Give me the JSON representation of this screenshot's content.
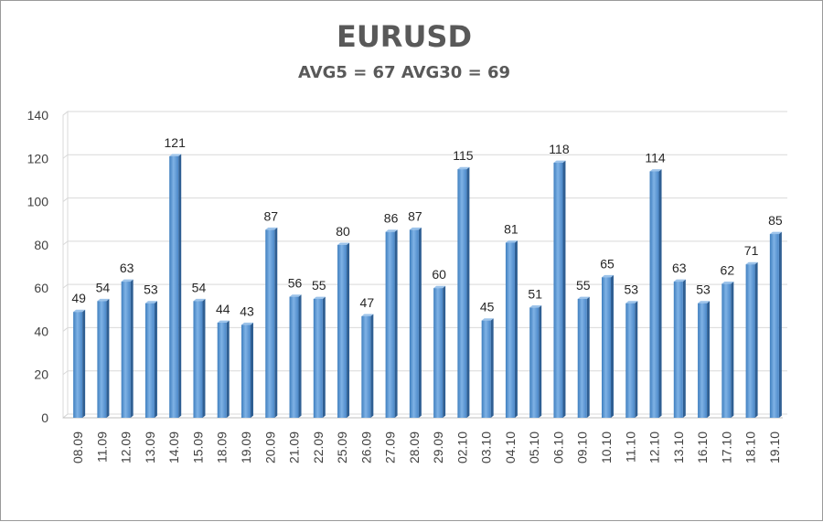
{
  "chart_data": {
    "type": "bar",
    "title": "EURUSD",
    "subtitle": "AVG5 = 67 AVG30 = 69",
    "xlabel": "",
    "ylabel": "",
    "ylim": [
      0,
      140
    ],
    "yticks": [
      0,
      20,
      40,
      60,
      80,
      100,
      120,
      140
    ],
    "grid": true,
    "legend": "none",
    "bar_color": "#5b9bd5",
    "categories": [
      "08.09",
      "11.09",
      "12.09",
      "13.09",
      "14.09",
      "15.09",
      "18.09",
      "19.09",
      "20.09",
      "21.09",
      "22.09",
      "25.09",
      "26.09",
      "27.09",
      "28.09",
      "29.09",
      "02.10",
      "03.10",
      "04.10",
      "05.10",
      "06.10",
      "09.10",
      "10.10",
      "11.10",
      "12.10",
      "13.10",
      "16.10",
      "17.10",
      "18.10",
      "19.10"
    ],
    "values": [
      49,
      54,
      63,
      53,
      121,
      54,
      44,
      43,
      87,
      56,
      55,
      80,
      47,
      86,
      87,
      60,
      115,
      45,
      81,
      51,
      118,
      55,
      65,
      53,
      114,
      63,
      53,
      62,
      71,
      85
    ]
  }
}
